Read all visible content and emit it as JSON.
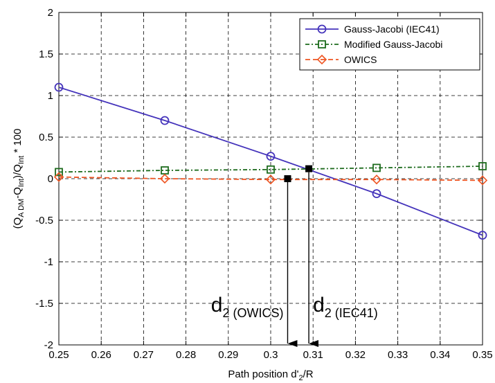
{
  "chart_data": {
    "type": "line",
    "xlabel_main": "Path position d'",
    "xlabel_sub": "2",
    "xlabel_tail": "/R",
    "ylabel_parts": [
      "(Q",
      "A DM",
      "-Q",
      "Int",
      ")/Q",
      "Int",
      " * 100"
    ],
    "xlim": [
      0.25,
      0.35
    ],
    "ylim": [
      -2,
      2
    ],
    "xticks": [
      0.25,
      0.26,
      0.27,
      0.28,
      0.29,
      0.3,
      0.31,
      0.32,
      0.33,
      0.34,
      0.35
    ],
    "xtick_labels": [
      "0.25",
      "0.26",
      "0.27",
      "0.28",
      "0.29",
      "0.3",
      "0.31",
      "0.32",
      "0.33",
      "0.34",
      "0.35"
    ],
    "yticks": [
      -2,
      -1.5,
      -1,
      -0.5,
      0,
      0.5,
      1,
      1.5,
      2
    ],
    "ytick_labels": [
      "-2",
      "-1.5",
      "-1",
      "-0.5",
      "0",
      "0.5",
      "1",
      "1.5",
      "2"
    ],
    "grid": true,
    "legend_position": "top-right",
    "series": [
      {
        "name": "Gauss-Jacobi (IEC41)",
        "color": "#4433bb",
        "dash": "",
        "marker": "circle",
        "x": [
          0.25,
          0.275,
          0.3,
          0.325,
          0.35
        ],
        "y": [
          1.1,
          0.7,
          0.27,
          -0.18,
          -0.68
        ]
      },
      {
        "name": "Modified Gauss-Jacobi",
        "color": "#1d6b1d",
        "dash": "6,3,2,3",
        "marker": "square",
        "x": [
          0.25,
          0.275,
          0.3,
          0.325,
          0.35
        ],
        "y": [
          0.08,
          0.1,
          0.11,
          0.13,
          0.15
        ]
      },
      {
        "name": "OWICS",
        "color": "#ee5522",
        "dash": "7,4",
        "marker": "diamond",
        "x": [
          0.25,
          0.275,
          0.3,
          0.325,
          0.35
        ],
        "y": [
          0.02,
          0.0,
          -0.01,
          -0.01,
          -0.02
        ]
      }
    ],
    "annotations": [
      {
        "id": "owics",
        "x": 0.304,
        "y": 0.0,
        "label_main": "d",
        "label_sub": "2 (OWICS)"
      },
      {
        "id": "iec41",
        "x": 0.309,
        "y": 0.12,
        "label_main": "d",
        "label_sub": "2 (IEC41)"
      }
    ]
  }
}
